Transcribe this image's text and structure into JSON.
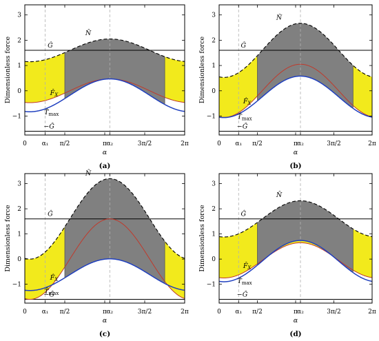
{
  "colors": {
    "axis": "#000000",
    "G_line": "#000000",
    "N_line": "#000000",
    "F_curve": "#c0392b",
    "T_curve": "#1f3fbf",
    "yellow_fill": "#f2ea1c",
    "gray_fill": "#808080",
    "guide": "#b0b0b0"
  },
  "chart_data": [
    {
      "type": "line",
      "panel_label": "(a)",
      "xlabel": "α",
      "ylabel": "Dimensionless force",
      "xlim": [
        0,
        6.2832
      ],
      "ylim": [
        -1.75,
        3.4
      ],
      "xticks": [
        "0",
        "α₁",
        "π/2",
        "π",
        "α₂",
        "3π/2",
        "2π"
      ],
      "yticks": [
        "3",
        "2",
        "1",
        "0",
        "−1"
      ],
      "alpha1": 0.8,
      "alpha2": 3.34,
      "G": 1.6,
      "N": {
        "mean": 1.6,
        "amp": 0.45
      },
      "F": {
        "mean": 0.0,
        "amp": 0.47
      },
      "T": {
        "mean": -0.18,
        "amp": 0.65
      },
      "labels": {
        "N": "N̂",
        "G": "Ĝ",
        "negG": "−Ĝ",
        "F": "F̂",
        "F_sub": "X",
        "T": "T̂",
        "T_sub": "max"
      }
    },
    {
      "type": "line",
      "panel_label": "(b)",
      "xlabel": "α",
      "ylabel": "Dimensionless force",
      "xlim": [
        0,
        6.2832
      ],
      "ylim": [
        -1.75,
        3.4
      ],
      "xticks": [
        "0",
        "α₁",
        "π/2",
        "π",
        "α₂",
        "3π/2",
        "2π"
      ],
      "yticks": [
        "3",
        "2",
        "1",
        "0",
        "−1"
      ],
      "alpha1": 0.8,
      "alpha2": 3.34,
      "G": 1.6,
      "N": {
        "mean": 1.6,
        "amp": 1.07
      },
      "F": {
        "mean": 0.0,
        "amp": 1.05
      },
      "T": {
        "mean": -0.24,
        "amp": 0.82
      },
      "labels": {
        "N": "N̂",
        "G": "Ĝ",
        "negG": "−Ĝ",
        "F": "F̂",
        "F_sub": "X",
        "T": "T̂",
        "T_sub": "max"
      }
    },
    {
      "type": "line",
      "panel_label": "(c)",
      "xlabel": "α",
      "ylabel": "Dimensionless force",
      "xlim": [
        0,
        6.2832
      ],
      "ylim": [
        -1.75,
        3.4
      ],
      "xticks": [
        "0",
        "α₁",
        "π/2",
        "π",
        "α₂",
        "3π/2",
        "2π"
      ],
      "yticks": [
        "3",
        "2",
        "1",
        "0",
        "−1"
      ],
      "alpha1": 0.8,
      "alpha2": 3.34,
      "G": 1.6,
      "N": {
        "mean": 1.6,
        "amp": 1.6
      },
      "F": {
        "mean": 0.0,
        "amp": 1.6
      },
      "T": {
        "mean": -0.62,
        "amp": 0.63
      },
      "labels": {
        "N": "N̂",
        "G": "Ĝ",
        "negG": "−Ĝ",
        "F": "F̂",
        "F_sub": "X",
        "T": "T̂",
        "T_sub": "max"
      }
    },
    {
      "type": "line",
      "panel_label": "(d)",
      "xlabel": "α",
      "ylabel": "Dimensionless force",
      "xlim": [
        0,
        6.2832
      ],
      "ylim": [
        -1.75,
        3.4
      ],
      "xticks": [
        "0",
        "α₁",
        "π/2",
        "π",
        "α₂",
        "3π/2",
        "2π"
      ],
      "yticks": [
        "3",
        "2",
        "1",
        "0",
        "−1"
      ],
      "alpha1": 0.8,
      "alpha2": 3.34,
      "G": 1.6,
      "N": {
        "mean": 1.6,
        "amp": 0.72
      },
      "F": {
        "mean": -0.05,
        "amp": 0.7
      },
      "T": {
        "mean": -0.08,
        "amp": 0.82
      },
      "labels": {
        "N": "N̂",
        "G": "Ĝ",
        "negG": "−Ĝ",
        "F": "F̂",
        "F_sub": "X",
        "T": "T̂",
        "T_sub": "max"
      }
    }
  ]
}
